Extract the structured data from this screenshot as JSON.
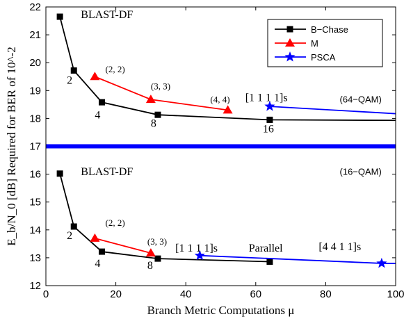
{
  "chart_data": {
    "type": "line",
    "xlabel": "Branch Metric Computations μ",
    "ylabel": "E_b/N_0 [dB] Required for BER of 10^-2",
    "xlim": [
      0,
      100
    ],
    "ylim": [
      12,
      22
    ],
    "x_ticks": [
      "0",
      "20",
      "40",
      "60",
      "80",
      "100"
    ],
    "y_ticks": [
      "12",
      "13",
      "14",
      "15",
      "16",
      "17",
      "18",
      "19",
      "20",
      "21",
      "22"
    ],
    "grid": false,
    "legend_position": "top-right",
    "colors": {
      "black": "#000000",
      "red": "#ff0000",
      "blue": "#0000ff",
      "divider": "#0000ff"
    },
    "divider_y": 17,
    "series": [
      {
        "name": "B−Chase",
        "panel": "64-QAM",
        "color": "#000000",
        "marker": "square",
        "x": [
          4,
          8,
          16,
          32,
          64,
          100
        ],
        "y": [
          21.65,
          19.72,
          18.58,
          18.13,
          17.95,
          17.93
        ]
      },
      {
        "name": "M",
        "panel": "64-QAM",
        "color": "#ff0000",
        "marker": "triangle",
        "x": [
          14,
          30,
          52
        ],
        "y": [
          19.5,
          18.68,
          18.3
        ]
      },
      {
        "name": "PSCA",
        "panel": "64-QAM",
        "color": "#0000ff",
        "marker": "star",
        "x": [
          64,
          100
        ],
        "y": [
          18.43,
          18.17
        ],
        "markers_at": [
          64
        ]
      },
      {
        "name": "B−Chase",
        "panel": "16-QAM",
        "color": "#000000",
        "marker": "square",
        "x": [
          4,
          8,
          16,
          32,
          64
        ],
        "y": [
          16.02,
          14.12,
          13.22,
          12.97,
          12.86
        ]
      },
      {
        "name": "M",
        "panel": "16-QAM",
        "color": "#ff0000",
        "marker": "triangle",
        "x": [
          14,
          30
        ],
        "y": [
          13.7,
          13.17
        ]
      },
      {
        "name": "PSCA",
        "panel": "16-QAM",
        "color": "#0000ff",
        "marker": "star",
        "x": [
          44,
          96,
          100
        ],
        "y": [
          13.08,
          12.8,
          12.8
        ],
        "markers_at": [
          44,
          96
        ]
      }
    ],
    "annotations": [
      {
        "text": "BLAST-DF",
        "x": 10,
        "y": 21.6,
        "style": "serif"
      },
      {
        "text": "2",
        "x": 6,
        "y": 19.25,
        "style": "serif"
      },
      {
        "text": "4",
        "x": 14,
        "y": 18.0,
        "style": "serif"
      },
      {
        "text": "8",
        "x": 30,
        "y": 17.7,
        "style": "serif"
      },
      {
        "text": "16",
        "x": 62,
        "y": 17.5,
        "style": "serif"
      },
      {
        "text": "(2, 2)",
        "x": 17,
        "y": 19.65,
        "style": "small"
      },
      {
        "text": "(3, 3)",
        "x": 30,
        "y": 19.05,
        "style": "small"
      },
      {
        "text": "(4, 4)",
        "x": 47,
        "y": 18.57,
        "style": "small"
      },
      {
        "text": "[1 1 1 1]s",
        "x": 57,
        "y": 18.62,
        "style": "serif"
      },
      {
        "text": "(64−QAM)",
        "x": 84,
        "y": 18.57,
        "style": "sans"
      },
      {
        "text": "BLAST-DF",
        "x": 10,
        "y": 15.97,
        "style": "serif"
      },
      {
        "text": "(16−QAM)",
        "x": 84,
        "y": 15.98,
        "style": "sans"
      },
      {
        "text": "2",
        "x": 6,
        "y": 13.67,
        "style": "serif"
      },
      {
        "text": "(2, 2)",
        "x": 17,
        "y": 14.15,
        "style": "small"
      },
      {
        "text": "4",
        "x": 14,
        "y": 12.67,
        "style": "serif"
      },
      {
        "text": "(3, 3)",
        "x": 29,
        "y": 13.47,
        "style": "small"
      },
      {
        "text": "8",
        "x": 29,
        "y": 12.6,
        "style": "serif"
      },
      {
        "text": "[1 1 1 1]s",
        "x": 37,
        "y": 13.22,
        "style": "serif"
      },
      {
        "text": "Parallel",
        "x": 58,
        "y": 13.22,
        "style": "serif"
      },
      {
        "text": "[4 4 1 1]s",
        "x": 78,
        "y": 13.27,
        "style": "serif"
      }
    ]
  }
}
